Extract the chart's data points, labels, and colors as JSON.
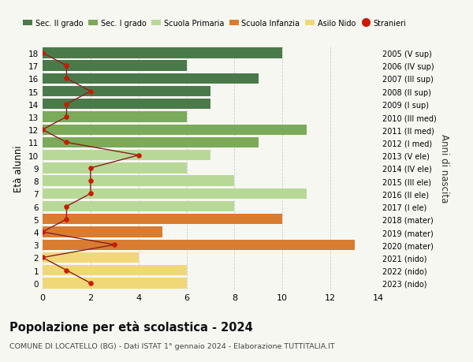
{
  "ages": [
    18,
    17,
    16,
    15,
    14,
    13,
    12,
    11,
    10,
    9,
    8,
    7,
    6,
    5,
    4,
    3,
    2,
    1,
    0
  ],
  "years_labels": [
    "2005 (V sup)",
    "2006 (IV sup)",
    "2007 (III sup)",
    "2008 (II sup)",
    "2009 (I sup)",
    "2010 (III med)",
    "2011 (II med)",
    "2012 (I med)",
    "2013 (V ele)",
    "2014 (IV ele)",
    "2015 (III ele)",
    "2016 (II ele)",
    "2017 (I ele)",
    "2018 (mater)",
    "2019 (mater)",
    "2020 (mater)",
    "2021 (nido)",
    "2022 (nido)",
    "2023 (nido)"
  ],
  "bar_values": [
    10,
    6,
    9,
    7,
    7,
    6,
    11,
    9,
    7,
    6,
    8,
    11,
    8,
    10,
    5,
    13,
    4,
    6,
    6
  ],
  "bar_colors": [
    "#4a7a4a",
    "#4a7a4a",
    "#4a7a4a",
    "#4a7a4a",
    "#4a7a4a",
    "#7aaa5a",
    "#7aaa5a",
    "#7aaa5a",
    "#b8d898",
    "#b8d898",
    "#b8d898",
    "#b8d898",
    "#b8d898",
    "#d97c30",
    "#d97c30",
    "#d97c30",
    "#f0d878",
    "#f0d878",
    "#f0d878"
  ],
  "stranieri_values": [
    0,
    1,
    1,
    2,
    1,
    1,
    0,
    1,
    4,
    2,
    2,
    2,
    1,
    1,
    0,
    3,
    0,
    1,
    2
  ],
  "legend_labels": [
    "Sec. II grado",
    "Sec. I grado",
    "Scuola Primaria",
    "Scuola Infanzia",
    "Asilo Nido",
    "Stranieri"
  ],
  "legend_colors": [
    "#4a7a4a",
    "#7aaa5a",
    "#b8d898",
    "#d97c30",
    "#f0d878",
    "#cc1a00"
  ],
  "title": "Popolazione per età scolastica - 2024",
  "subtitle": "COMUNE DI LOCATELLO (BG) - Dati ISTAT 1° gennaio 2024 - Elaborazione TUTTITALIA.IT",
  "ylabel_left": "Età alunni",
  "ylabel_right": "Anni di nascita",
  "xlim": [
    0,
    14
  ],
  "xticks": [
    0,
    2,
    4,
    6,
    8,
    10,
    12,
    14
  ],
  "background_color": "#f7f7f2",
  "grid_color": "#dddddd",
  "stranieri_line_color": "#8b2020",
  "stranieri_dot_color": "#cc1a00"
}
